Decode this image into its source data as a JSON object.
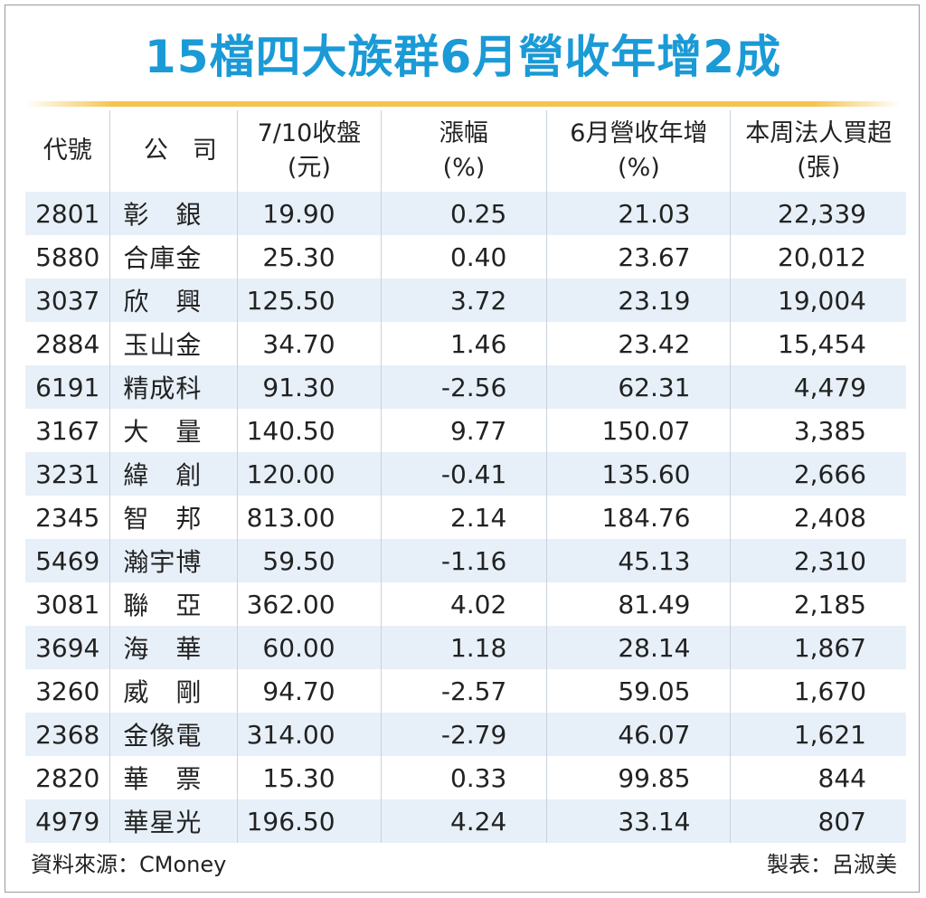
{
  "title": "15檔四大族群6月營收年增2成",
  "headers": {
    "code": "代號",
    "company": "公　司",
    "close_line1": "7/10收盤",
    "close_line2": "(元)",
    "change_line1": "漲幅",
    "change_line2": "(%)",
    "revenue_line1": "6月營收年增",
    "revenue_line2": "(%)",
    "buy_line1": "本周法人買超",
    "buy_line2": "(張)"
  },
  "rows": [
    {
      "code": "2801",
      "company": "彰　銀",
      "close": "19.90",
      "change": "0.25",
      "revenue": "21.03",
      "buy": "22,339"
    },
    {
      "code": "5880",
      "company": "合庫金",
      "close": "25.30",
      "change": "0.40",
      "revenue": "23.67",
      "buy": "20,012"
    },
    {
      "code": "3037",
      "company": "欣　興",
      "close": "125.50",
      "change": "3.72",
      "revenue": "23.19",
      "buy": "19,004"
    },
    {
      "code": "2884",
      "company": "玉山金",
      "close": "34.70",
      "change": "1.46",
      "revenue": "23.42",
      "buy": "15,454"
    },
    {
      "code": "6191",
      "company": "精成科",
      "close": "91.30",
      "change": "-2.56",
      "revenue": "62.31",
      "buy": "4,479"
    },
    {
      "code": "3167",
      "company": "大　量",
      "close": "140.50",
      "change": "9.77",
      "revenue": "150.07",
      "buy": "3,385"
    },
    {
      "code": "3231",
      "company": "緯　創",
      "close": "120.00",
      "change": "-0.41",
      "revenue": "135.60",
      "buy": "2,666"
    },
    {
      "code": "2345",
      "company": "智　邦",
      "close": "813.00",
      "change": "2.14",
      "revenue": "184.76",
      "buy": "2,408"
    },
    {
      "code": "5469",
      "company": "瀚宇博",
      "close": "59.50",
      "change": "-1.16",
      "revenue": "45.13",
      "buy": "2,310"
    },
    {
      "code": "3081",
      "company": "聯　亞",
      "close": "362.00",
      "change": "4.02",
      "revenue": "81.49",
      "buy": "2,185"
    },
    {
      "code": "3694",
      "company": "海　華",
      "close": "60.00",
      "change": "1.18",
      "revenue": "28.14",
      "buy": "1,867"
    },
    {
      "code": "3260",
      "company": "威　剛",
      "close": "94.70",
      "change": "-2.57",
      "revenue": "59.05",
      "buy": "1,670"
    },
    {
      "code": "2368",
      "company": "金像電",
      "close": "314.00",
      "change": "-2.79",
      "revenue": "46.07",
      "buy": "1,621"
    },
    {
      "code": "2820",
      "company": "華　票",
      "close": "15.30",
      "change": "0.33",
      "revenue": "99.85",
      "buy": "844"
    },
    {
      "code": "4979",
      "company": "華星光",
      "close": "196.50",
      "change": "4.24",
      "revenue": "33.14",
      "buy": "807"
    }
  ],
  "footer": {
    "source": "資料來源：CMoney",
    "maker": "製表：呂淑美"
  },
  "colors": {
    "title": "#1a9ad6",
    "rule": "#f4c451",
    "row_shade": "#e7f0f8"
  }
}
